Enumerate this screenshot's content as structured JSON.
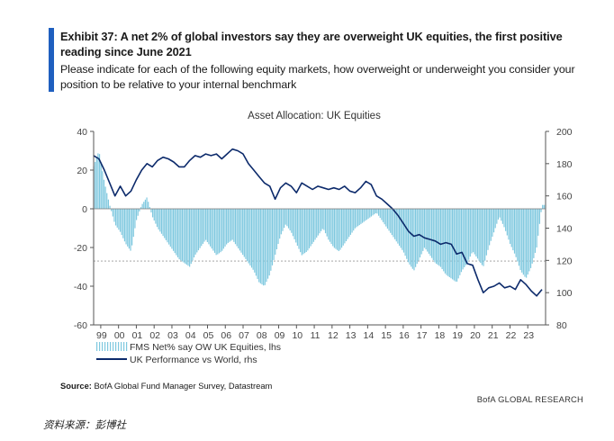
{
  "exhibit": {
    "title": "Exhibit 37: A net 2% of global investors say they are overweight UK equities, the first positive reading since June 2021",
    "subtitle": "Please indicate for each of the following equity markets, how overweight or underweight you consider your position to be relative to your internal benchmark"
  },
  "footer": {
    "source_label": "Source:",
    "source_text": " BofA Global Fund Manager Survey, Datastream",
    "brand": "BofA GLOBAL RESEARCH",
    "cn_source": "资料来源：彭博社"
  },
  "colors": {
    "accent": "#1f5fbf",
    "bars": "#7ec8df",
    "line": "#0c2a6b",
    "refline": "#9a9a9a"
  },
  "chart_data": {
    "type": "bar",
    "title": "Asset Allocation: UK Equities",
    "x_tick_labels": [
      "99",
      "00",
      "01",
      "02",
      "03",
      "04",
      "05",
      "06",
      "07",
      "08",
      "09",
      "10",
      "11",
      "12",
      "13",
      "14",
      "15",
      "16",
      "17",
      "18",
      "19",
      "20",
      "21",
      "22",
      "23"
    ],
    "x_range": [
      1998.6,
      2024.0
    ],
    "y_left": {
      "ticks": [
        "40",
        "20",
        "0",
        "-20",
        "-40",
        "-60"
      ],
      "range": [
        -60,
        40
      ]
    },
    "y_right": {
      "ticks": [
        "200",
        "180",
        "160",
        "140",
        "120",
        "100",
        "80"
      ],
      "range": [
        80,
        200
      ]
    },
    "reference_line_left": -27,
    "legend": [
      "FMS Net% say OW UK Equities, lhs",
      "UK Performance vs World, rhs"
    ],
    "series": [
      {
        "name": "FMS Net% say OW UK Equities, lhs",
        "axis": "left",
        "kind": "bar",
        "points": [
          [
            1998.6,
            22
          ],
          [
            1998.9,
            30
          ],
          [
            1999.2,
            14
          ],
          [
            1999.5,
            2
          ],
          [
            1999.8,
            -8
          ],
          [
            2000.1,
            -12
          ],
          [
            2000.4,
            -18
          ],
          [
            2000.7,
            -22
          ],
          [
            2001.0,
            -6
          ],
          [
            2001.3,
            2
          ],
          [
            2001.6,
            6
          ],
          [
            2001.9,
            -4
          ],
          [
            2002.2,
            -10
          ],
          [
            2002.5,
            -14
          ],
          [
            2002.8,
            -18
          ],
          [
            2003.1,
            -22
          ],
          [
            2003.4,
            -26
          ],
          [
            2003.7,
            -28
          ],
          [
            2004.0,
            -30
          ],
          [
            2004.3,
            -24
          ],
          [
            2004.6,
            -20
          ],
          [
            2004.9,
            -16
          ],
          [
            2005.2,
            -20
          ],
          [
            2005.5,
            -24
          ],
          [
            2005.8,
            -22
          ],
          [
            2006.1,
            -18
          ],
          [
            2006.4,
            -16
          ],
          [
            2006.7,
            -20
          ],
          [
            2007.0,
            -24
          ],
          [
            2007.3,
            -28
          ],
          [
            2007.6,
            -32
          ],
          [
            2007.9,
            -38
          ],
          [
            2008.2,
            -40
          ],
          [
            2008.5,
            -34
          ],
          [
            2008.8,
            -24
          ],
          [
            2009.1,
            -14
          ],
          [
            2009.4,
            -8
          ],
          [
            2009.7,
            -12
          ],
          [
            2010.0,
            -18
          ],
          [
            2010.3,
            -24
          ],
          [
            2010.6,
            -22
          ],
          [
            2010.9,
            -18
          ],
          [
            2011.2,
            -14
          ],
          [
            2011.5,
            -10
          ],
          [
            2011.8,
            -16
          ],
          [
            2012.1,
            -20
          ],
          [
            2012.4,
            -22
          ],
          [
            2012.7,
            -18
          ],
          [
            2013.0,
            -14
          ],
          [
            2013.3,
            -10
          ],
          [
            2013.6,
            -8
          ],
          [
            2013.9,
            -6
          ],
          [
            2014.2,
            -4
          ],
          [
            2014.5,
            -2
          ],
          [
            2014.8,
            -6
          ],
          [
            2015.1,
            -10
          ],
          [
            2015.4,
            -14
          ],
          [
            2015.7,
            -18
          ],
          [
            2016.0,
            -22
          ],
          [
            2016.3,
            -28
          ],
          [
            2016.6,
            -32
          ],
          [
            2016.9,
            -26
          ],
          [
            2017.2,
            -20
          ],
          [
            2017.5,
            -24
          ],
          [
            2017.8,
            -28
          ],
          [
            2018.1,
            -30
          ],
          [
            2018.4,
            -34
          ],
          [
            2018.7,
            -36
          ],
          [
            2019.0,
            -38
          ],
          [
            2019.3,
            -32
          ],
          [
            2019.6,
            -28
          ],
          [
            2019.9,
            -22
          ],
          [
            2020.2,
            -26
          ],
          [
            2020.5,
            -30
          ],
          [
            2020.8,
            -20
          ],
          [
            2021.1,
            -12
          ],
          [
            2021.4,
            -4
          ],
          [
            2021.7,
            -10
          ],
          [
            2022.0,
            -18
          ],
          [
            2022.3,
            -24
          ],
          [
            2022.6,
            -32
          ],
          [
            2022.9,
            -36
          ],
          [
            2023.2,
            -30
          ],
          [
            2023.5,
            -20
          ],
          [
            2023.8,
            2
          ]
        ]
      },
      {
        "name": "UK Performance vs World, rhs",
        "axis": "right",
        "kind": "line",
        "points": [
          [
            1998.6,
            185
          ],
          [
            1998.9,
            183
          ],
          [
            1999.2,
            176
          ],
          [
            1999.5,
            168
          ],
          [
            1999.8,
            160
          ],
          [
            2000.1,
            166
          ],
          [
            2000.4,
            160
          ],
          [
            2000.7,
            163
          ],
          [
            2001.0,
            170
          ],
          [
            2001.3,
            176
          ],
          [
            2001.6,
            180
          ],
          [
            2001.9,
            178
          ],
          [
            2002.2,
            182
          ],
          [
            2002.5,
            184
          ],
          [
            2002.8,
            183
          ],
          [
            2003.1,
            181
          ],
          [
            2003.4,
            178
          ],
          [
            2003.7,
            178
          ],
          [
            2004.0,
            182
          ],
          [
            2004.3,
            185
          ],
          [
            2004.6,
            184
          ],
          [
            2004.9,
            186
          ],
          [
            2005.2,
            185
          ],
          [
            2005.5,
            186
          ],
          [
            2005.8,
            183
          ],
          [
            2006.1,
            186
          ],
          [
            2006.4,
            189
          ],
          [
            2006.7,
            188
          ],
          [
            2007.0,
            186
          ],
          [
            2007.3,
            180
          ],
          [
            2007.6,
            176
          ],
          [
            2007.9,
            172
          ],
          [
            2008.2,
            168
          ],
          [
            2008.5,
            166
          ],
          [
            2008.8,
            158
          ],
          [
            2009.1,
            165
          ],
          [
            2009.4,
            168
          ],
          [
            2009.7,
            166
          ],
          [
            2010.0,
            162
          ],
          [
            2010.3,
            168
          ],
          [
            2010.6,
            166
          ],
          [
            2010.9,
            164
          ],
          [
            2011.2,
            166
          ],
          [
            2011.5,
            165
          ],
          [
            2011.8,
            164
          ],
          [
            2012.1,
            165
          ],
          [
            2012.4,
            164
          ],
          [
            2012.7,
            166
          ],
          [
            2013.0,
            163
          ],
          [
            2013.3,
            162
          ],
          [
            2013.6,
            165
          ],
          [
            2013.9,
            169
          ],
          [
            2014.2,
            167
          ],
          [
            2014.5,
            160
          ],
          [
            2014.8,
            158
          ],
          [
            2015.1,
            155
          ],
          [
            2015.4,
            152
          ],
          [
            2015.7,
            148
          ],
          [
            2016.0,
            143
          ],
          [
            2016.3,
            138
          ],
          [
            2016.6,
            135
          ],
          [
            2016.9,
            136
          ],
          [
            2017.2,
            134
          ],
          [
            2017.5,
            133
          ],
          [
            2017.8,
            132
          ],
          [
            2018.1,
            130
          ],
          [
            2018.4,
            131
          ],
          [
            2018.7,
            130
          ],
          [
            2019.0,
            124
          ],
          [
            2019.3,
            125
          ],
          [
            2019.6,
            118
          ],
          [
            2019.9,
            117
          ],
          [
            2020.2,
            108
          ],
          [
            2020.5,
            100
          ],
          [
            2020.8,
            103
          ],
          [
            2021.1,
            104
          ],
          [
            2021.4,
            106
          ],
          [
            2021.7,
            103
          ],
          [
            2022.0,
            104
          ],
          [
            2022.3,
            102
          ],
          [
            2022.6,
            108
          ],
          [
            2022.9,
            105
          ],
          [
            2023.2,
            101
          ],
          [
            2023.5,
            98
          ],
          [
            2023.8,
            102
          ]
        ]
      }
    ]
  }
}
